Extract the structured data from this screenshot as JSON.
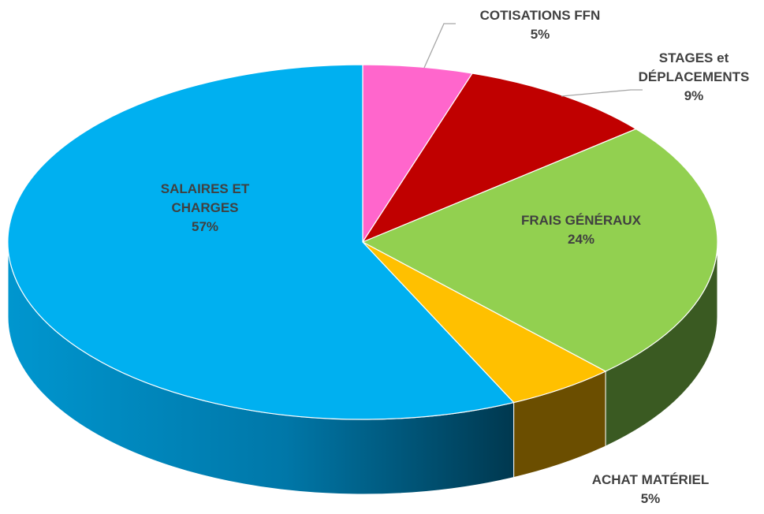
{
  "chart_data": {
    "type": "pie3d",
    "categories": [
      "COTISATIONS  FFN",
      "STAGES et DÉPLACEMENTS",
      "FRAIS GÉNÉRAUX",
      "ACHAT MATÉRIEL",
      "SALAIRES ET CHARGES"
    ],
    "values": [
      5,
      9,
      24,
      5,
      57
    ],
    "value_labels": [
      "5%",
      "9%",
      "24%",
      "5%",
      "57%"
    ],
    "colors": [
      "#ff66cc",
      "#c00000",
      "#92d050",
      "#ffc000",
      "#00b0f0"
    ]
  }
}
